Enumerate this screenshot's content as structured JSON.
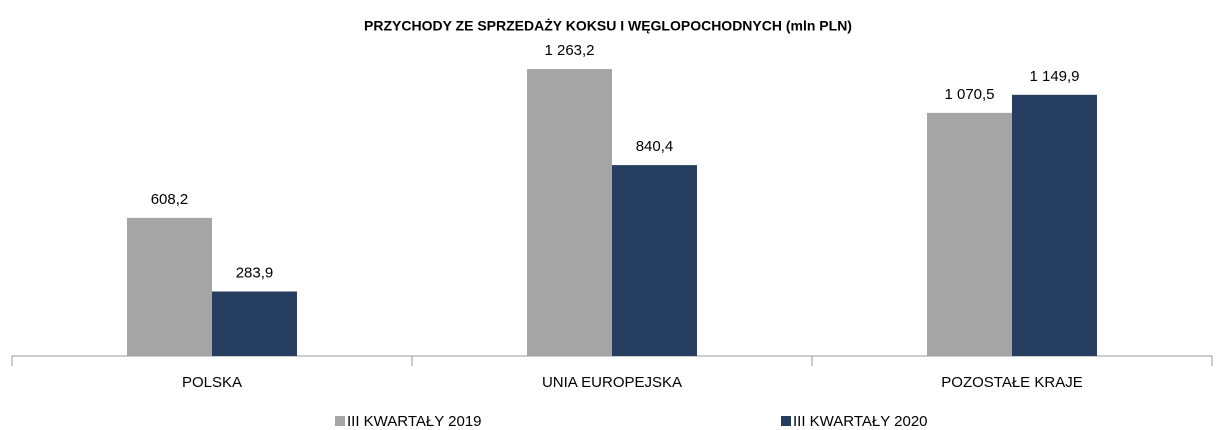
{
  "chart_data": {
    "type": "bar",
    "title": "PRZYCHODY  ZE SPRZEDAŻY KOKSU I WĘGLOPOCHODNYCH (mln PLN)",
    "categories": [
      "POLSKA",
      "UNIA EUROPEJSKA",
      "POZOSTAŁE KRAJE"
    ],
    "series": [
      {
        "name": "III KWARTAŁY 2019",
        "color": "#a5a5a5",
        "values": [
          608.2,
          1263.2,
          1070.5
        ],
        "value_labels": [
          "608,2",
          "1 263,2",
          "1 070,5"
        ]
      },
      {
        "name": "III KWARTAŁY 2020",
        "color": "#253e5f",
        "values": [
          283.9,
          840.4,
          1149.9
        ],
        "value_labels": [
          "283,9",
          "840,4",
          "1 149,9"
        ]
      }
    ],
    "ylim": [
      0,
      1400
    ],
    "legend": "bottom"
  }
}
